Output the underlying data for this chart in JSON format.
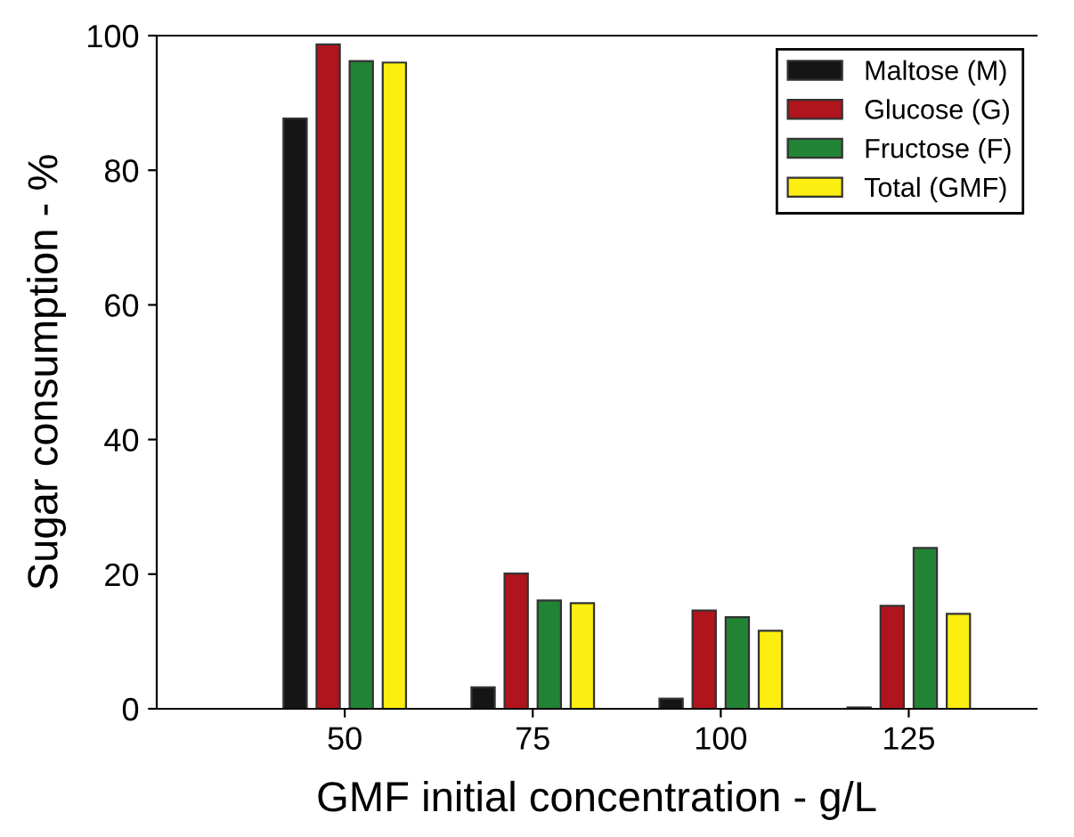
{
  "chart_data": {
    "type": "bar",
    "xlabel": "GMF initial concentration - g/L",
    "ylabel": "Sugar consumption - %",
    "x": [
      50,
      75,
      100,
      125
    ],
    "series": [
      {
        "name": "Maltose (M)",
        "color": "#151515",
        "values": [
          87.7,
          3.2,
          1.5,
          0.2
        ]
      },
      {
        "name": "Glucose (G)",
        "color": "#b0141c",
        "values": [
          98.7,
          20.1,
          14.6,
          15.3
        ]
      },
      {
        "name": "Fructose (F)",
        "color": "#218434",
        "values": [
          96.2,
          16.1,
          13.6,
          23.9
        ]
      },
      {
        "name": "Total (GMF)",
        "color": "#fbee10",
        "values": [
          96.0,
          15.7,
          11.6,
          14.1
        ]
      }
    ],
    "xlim": [
      25,
      142
    ],
    "xticks": [
      50,
      75,
      100,
      125
    ],
    "ylim": [
      0,
      100
    ],
    "yticks": [
      0,
      20,
      40,
      60,
      80,
      100
    ],
    "grid": false,
    "legend": "top right"
  }
}
